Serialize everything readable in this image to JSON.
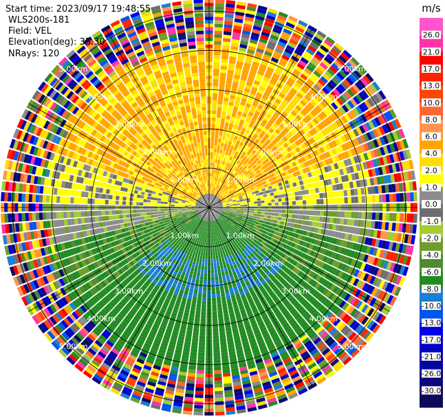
{
  "header": {
    "start_time": "Start time: 2023/09/17 19:48:55",
    "station": "WLS200s-181",
    "field": "Field: VEL",
    "elevation": "Elevation(deg): 35.30",
    "nrays": "NRays: 120"
  },
  "chart_data": {
    "type": "heatmap",
    "projection": "polar-ppi",
    "field": "VEL",
    "unit": "m/s",
    "nrays": 120,
    "elevation_deg": 35.3,
    "range_rings": [
      {
        "label": "1.00km",
        "range_km": 1.0
      },
      {
        "label": "2.00km",
        "range_km": 2.0
      },
      {
        "label": "3.00km",
        "range_km": 3.0
      },
      {
        "label": "4.00km",
        "range_km": 4.0
      },
      {
        "label": "5.00km",
        "range_km": 5.0
      }
    ],
    "max_range_km": 5.3,
    "colorbar": {
      "unit": "m/s",
      "bins": [
        {
          "label": "-30.0",
          "color": "#0b0b5a"
        },
        {
          "label": "-26.0",
          "color": "#0a0a7c"
        },
        {
          "label": "-21.0",
          "color": "#06069f"
        },
        {
          "label": "-17.0",
          "color": "#0303c4"
        },
        {
          "label": "-13.0",
          "color": "#0000e6"
        },
        {
          "label": "-10.0",
          "color": "#0055ea"
        },
        {
          "label": "-8.0",
          "color": "#1c7fd0"
        },
        {
          "label": "-6.0",
          "color": "#228b22"
        },
        {
          "label": "-4.0",
          "color": "#4c8c2f"
        },
        {
          "label": "-2.0",
          "color": "#6f9d2a"
        },
        {
          "label": "-1.0",
          "color": "#a3cc35"
        },
        {
          "label": "0.0",
          "color": "#6e6e6e"
        },
        {
          "label": "1.0",
          "color": "#8c8c8c"
        },
        {
          "label": "2.0",
          "color": "#ffff00"
        },
        {
          "label": "4.0",
          "color": "#ffdd00"
        },
        {
          "label": "6.0",
          "color": "#ffa500"
        },
        {
          "label": "8.0",
          "color": "#ff9550"
        },
        {
          "label": "10.0",
          "color": "#ff6633"
        },
        {
          "label": "13.0",
          "color": "#ff4500"
        },
        {
          "label": "17.0",
          "color": "#ff2200"
        },
        {
          "label": "21.0",
          "color": "#ff0000"
        },
        {
          "label": "26.0",
          "color": "#ff33aa"
        }
      ],
      "top_color": "#ff55cc"
    }
  }
}
